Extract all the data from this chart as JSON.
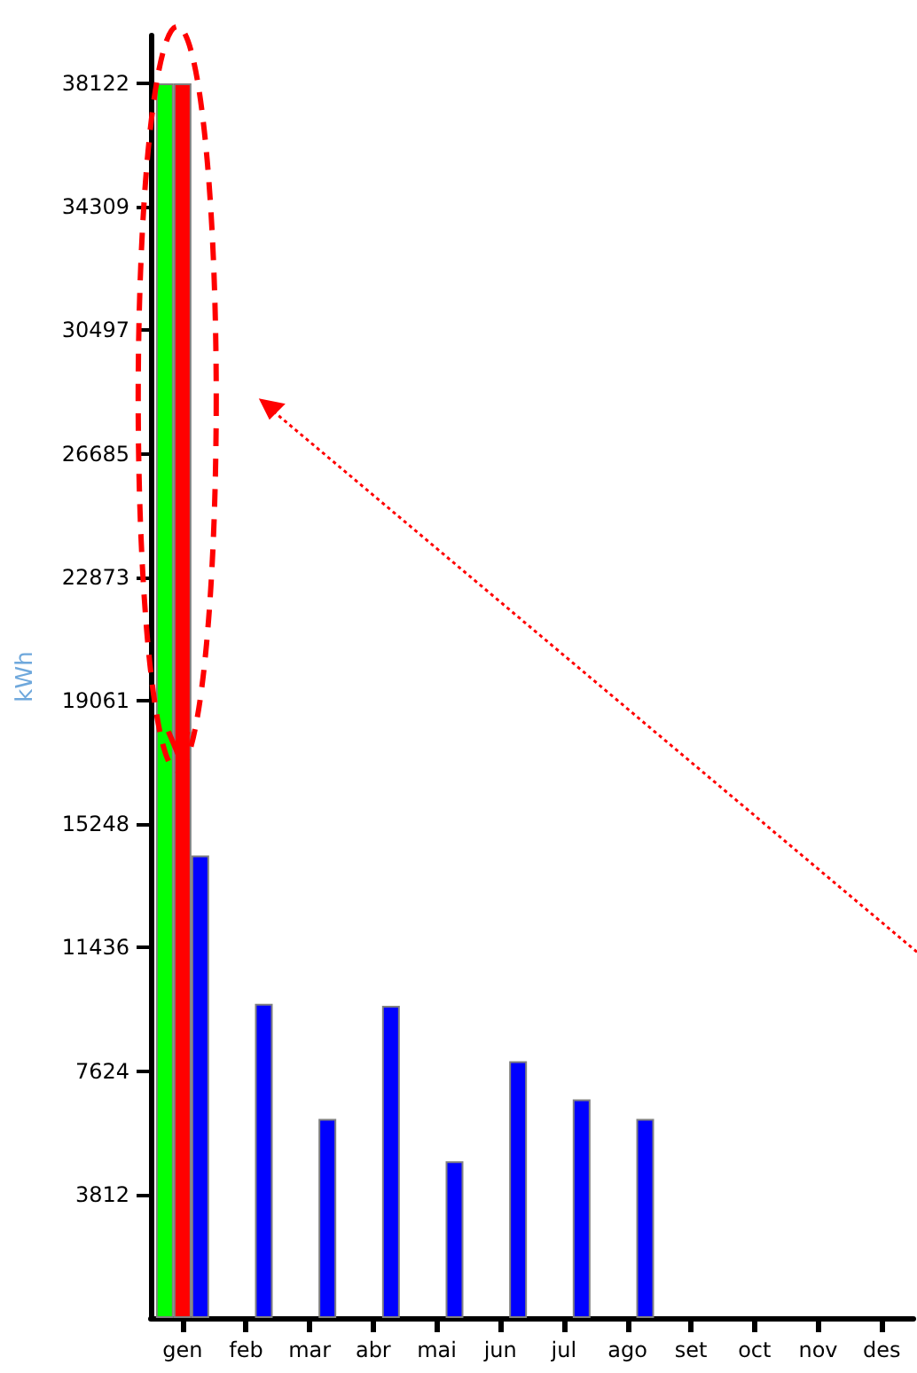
{
  "chart_data": {
    "type": "bar",
    "ylabel": "kWh",
    "categories": [
      "gen",
      "feb",
      "mar",
      "abr",
      "mai",
      "jun",
      "jul",
      "ago",
      "set",
      "oct",
      "nov",
      "des"
    ],
    "series": [
      {
        "color": "#00ff00",
        "values": [
          38122,
          null,
          null,
          null,
          null,
          null,
          null,
          null,
          null,
          null,
          null,
          null
        ]
      },
      {
        "color": "#ff0000",
        "values": [
          38122,
          null,
          null,
          null,
          null,
          null,
          null,
          null,
          null,
          null,
          null,
          null
        ]
      },
      {
        "color": "#0000ff",
        "values": [
          14280,
          9700,
          6150,
          9640,
          4840,
          7930,
          6750,
          6150,
          null,
          null,
          null,
          null
        ]
      }
    ],
    "ylim": [
      0,
      39600
    ],
    "yticks": [
      3812,
      7624,
      11436,
      15248,
      19061,
      22873,
      26685,
      30497,
      34309,
      38122
    ],
    "grid": false,
    "legend": false
  }
}
